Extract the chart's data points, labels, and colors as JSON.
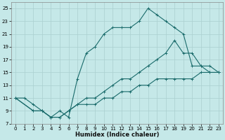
{
  "xlabel": "Humidex (Indice chaleur)",
  "bg_color": "#c5e8e8",
  "line_color": "#1a6b6b",
  "grid_color": "#aacfcf",
  "xlim": [
    -0.5,
    23.5
  ],
  "ylim": [
    7,
    26
  ],
  "xticks": [
    0,
    1,
    2,
    3,
    4,
    5,
    6,
    7,
    8,
    9,
    10,
    11,
    12,
    13,
    14,
    15,
    16,
    17,
    18,
    19,
    20,
    21,
    22,
    23
  ],
  "yticks": [
    7,
    9,
    11,
    13,
    15,
    17,
    19,
    21,
    23,
    25
  ],
  "line1_x": [
    0,
    1,
    2,
    3,
    4,
    5,
    6,
    7,
    8,
    9,
    10,
    11,
    12,
    13,
    14,
    15,
    16,
    17,
    18,
    19,
    20,
    21,
    22,
    23
  ],
  "line1_y": [
    11,
    11,
    10,
    9,
    8,
    9,
    8,
    14,
    18,
    19,
    21,
    22,
    22,
    22,
    23,
    25,
    24,
    23,
    22,
    21,
    16,
    16,
    15,
    15
  ],
  "line2_x": [
    0,
    2,
    3,
    4,
    5,
    6,
    7,
    8,
    9,
    10,
    11,
    12,
    13,
    14,
    15,
    16,
    17,
    18,
    19,
    20,
    21,
    22,
    23
  ],
  "line2_y": [
    11,
    9,
    9,
    8,
    8,
    9,
    10,
    11,
    11,
    12,
    13,
    14,
    14,
    15,
    16,
    17,
    18,
    20,
    18,
    18,
    16,
    16,
    15
  ],
  "line3_x": [
    0,
    2,
    3,
    4,
    5,
    6,
    7,
    8,
    9,
    10,
    11,
    12,
    13,
    14,
    15,
    16,
    17,
    18,
    19,
    20,
    21,
    22,
    23
  ],
  "line3_y": [
    11,
    9,
    9,
    8,
    8,
    9,
    10,
    10,
    10,
    11,
    11,
    12,
    12,
    13,
    13,
    14,
    14,
    14,
    14,
    14,
    15,
    15,
    15
  ],
  "xlabel_fontsize": 6,
  "tick_fontsize": 5,
  "linewidth": 0.8,
  "markersize": 2.0
}
